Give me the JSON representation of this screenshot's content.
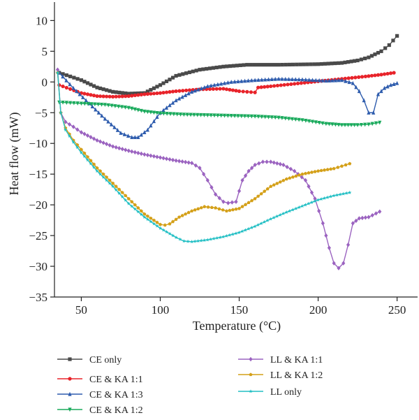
{
  "chart_data": {
    "type": "line",
    "title": "",
    "xlabel": "Temperature (°C)",
    "ylabel": "Heat flow (mW)",
    "xlim": [
      33,
      263
    ],
    "ylim": [
      -35,
      13
    ],
    "xticks": [
      50,
      100,
      150,
      200,
      250
    ],
    "yticks": [
      10,
      5,
      0,
      -5,
      -10,
      -15,
      -20,
      -25,
      -30,
      -35
    ],
    "grid": false,
    "legend_position": "bottom",
    "series": [
      {
        "name": "CE only",
        "color": "#4a4a4a",
        "marker": "square",
        "x": [
          36,
          50,
          60,
          70,
          80,
          90,
          100,
          110,
          125,
          140,
          155,
          175,
          200,
          215,
          225,
          232,
          240,
          245,
          250
        ],
        "y": [
          1.5,
          0.3,
          -0.9,
          -1.6,
          -1.9,
          -1.8,
          -0.5,
          1,
          2,
          2.5,
          2.8,
          2.8,
          2.9,
          3.1,
          3.5,
          4,
          5,
          6,
          7.5
        ]
      },
      {
        "name": "CE & KA 1:1",
        "color": "#e8232a",
        "marker": "circle",
        "x": [
          36,
          50,
          60,
          70,
          80,
          90,
          100,
          110,
          125,
          140,
          150,
          155,
          160,
          162,
          170,
          185,
          200,
          215,
          230,
          240,
          248
        ],
        "y": [
          -0.5,
          -1.8,
          -2.3,
          -2.4,
          -2.3,
          -2,
          -1.8,
          -1.5,
          -1.2,
          -1.1,
          -1.5,
          -1.6,
          -1.7,
          -0.9,
          -0.7,
          -0.3,
          0.1,
          0.5,
          0.9,
          1.2,
          1.5
        ]
      },
      {
        "name": "CE & KA 1:3",
        "color": "#2e5cad",
        "marker": "triangle",
        "x": [
          36,
          45,
          55,
          65,
          75,
          82,
          86,
          92,
          100,
          110,
          120,
          130,
          145,
          160,
          175,
          190,
          205,
          215,
          222,
          226,
          229,
          232,
          235,
          238,
          242,
          246,
          250
        ],
        "y": [
          1.5,
          -1,
          -3.5,
          -6,
          -8.3,
          -9,
          -9,
          -7.8,
          -5,
          -3,
          -1.6,
          -0.7,
          0,
          0.3,
          0.5,
          0.4,
          0.2,
          0.3,
          -0.2,
          -1.5,
          -3,
          -5,
          -5,
          -2,
          -1,
          -0.5,
          -0.2
        ]
      },
      {
        "name": "CE & KA 1:2",
        "color": "#1aaa5c",
        "marker": "down-triangle",
        "x": [
          36,
          50,
          65,
          80,
          90,
          100,
          115,
          130,
          145,
          160,
          175,
          190,
          205,
          215,
          225,
          232,
          239
        ],
        "y": [
          -3.3,
          -3.5,
          -3.7,
          -4.2,
          -4.8,
          -5.1,
          -5.3,
          -5.4,
          -5.5,
          -5.6,
          -5.8,
          -6.2,
          -6.8,
          -7,
          -7,
          -6.9,
          -6.6
        ]
      },
      {
        "name": "LL & KA 1:1",
        "color": "#9b63c0",
        "marker": "diamond",
        "x": [
          35,
          37,
          40,
          45,
          50,
          60,
          70,
          80,
          90,
          100,
          110,
          120,
          125,
          130,
          135,
          140,
          143,
          148,
          152,
          156,
          160,
          165,
          170,
          178,
          185,
          192,
          198,
          203,
          207,
          210,
          213,
          216,
          219,
          222,
          226,
          232,
          239
        ],
        "y": [
          2,
          -5,
          -6.5,
          -7.3,
          -8.2,
          -9.5,
          -10.5,
          -11.2,
          -11.8,
          -12.3,
          -12.8,
          -13.2,
          -14,
          -16,
          -18.3,
          -19.5,
          -19.7,
          -19.5,
          -16,
          -14.5,
          -13.5,
          -13,
          -13,
          -13.5,
          -14.5,
          -16,
          -19,
          -23,
          -27,
          -29.5,
          -30.3,
          -29.5,
          -26.5,
          -23,
          -22.2,
          -22,
          -21.1
        ]
      },
      {
        "name": "LL & KA 1:2",
        "color": "#d4a019",
        "marker": "pentagon",
        "x": [
          35,
          37,
          40,
          45,
          50,
          60,
          70,
          80,
          90,
          100,
          103,
          106,
          112,
          120,
          128,
          135,
          142,
          150,
          160,
          170,
          180,
          190,
          200,
          210,
          215,
          220
        ],
        "y": [
          1.5,
          -5,
          -7.5,
          -9.5,
          -11,
          -14,
          -16.5,
          -19,
          -21.5,
          -23.2,
          -23.3,
          -23.1,
          -22,
          -21,
          -20.3,
          -20.5,
          -21,
          -20.6,
          -19,
          -17,
          -15.8,
          -15,
          -14.5,
          -14.1,
          -13.7,
          -13.3
        ]
      },
      {
        "name": "LL only",
        "color": "#22bfc4",
        "marker": "star",
        "x": [
          35,
          37,
          40,
          45,
          50,
          60,
          70,
          80,
          90,
          100,
          110,
          115,
          120,
          130,
          140,
          150,
          160,
          170,
          180,
          190,
          200,
          210,
          220
        ],
        "y": [
          1.5,
          -5,
          -7.8,
          -9.8,
          -11.5,
          -14.5,
          -17,
          -19.8,
          -22,
          -23.8,
          -25.3,
          -25.9,
          -26,
          -25.7,
          -25.2,
          -24.5,
          -23.5,
          -22.3,
          -21.2,
          -20.2,
          -19.2,
          -18.5,
          -18
        ]
      }
    ]
  }
}
